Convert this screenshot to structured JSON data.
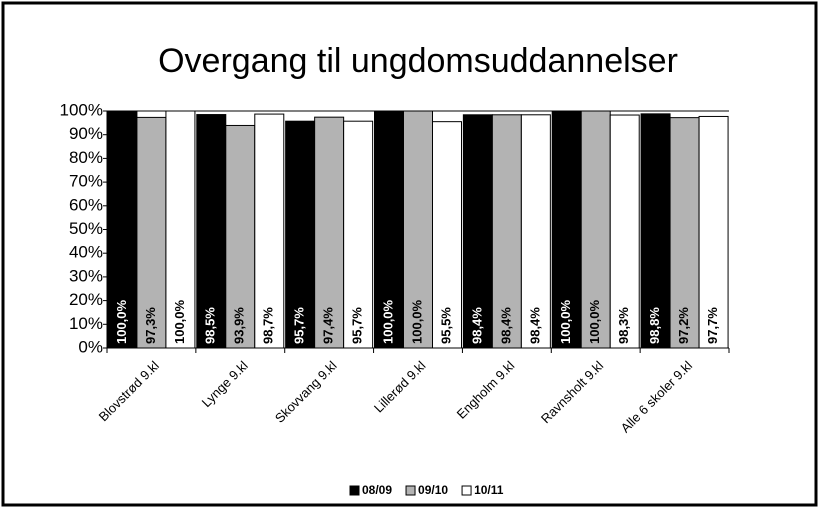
{
  "chart_data": {
    "type": "bar",
    "title": "Overgang til ungdomsuddannelser",
    "categories": [
      "Blovstrød 9.kl",
      "Lynge 9.kl",
      "Skovvang 9.kl",
      "Lillerød 9.kl",
      "Engholm 9.kl",
      "Ravnsholt 9.kl",
      "Alle 6 skoler 9.kl"
    ],
    "series": [
      {
        "name": "08/09",
        "color": "#000000",
        "values": [
          100,
          98.5,
          95.7,
          100,
          98.4,
          100,
          98.8
        ],
        "value_labels": [
          "100,0%",
          "98,5%",
          "95,7%",
          "100,0%",
          "98,4%",
          "100,0%",
          "98,8%"
        ]
      },
      {
        "name": "09/10",
        "color": "#b3b3b3",
        "values": [
          97.3,
          93.9,
          97.4,
          100,
          98.4,
          100,
          97.2
        ],
        "value_labels": [
          "97,3%",
          "93,9%",
          "97,4%",
          "100,0%",
          "98,4%",
          "100,0%",
          "97,2%"
        ]
      },
      {
        "name": "10/11",
        "color": "#ffffff",
        "values": [
          100,
          98.7,
          95.7,
          95.5,
          98.4,
          98.3,
          97.7
        ],
        "value_labels": [
          "100,0%",
          "98,7%",
          "95,7%",
          "95,5%",
          "98,4%",
          "98,3%",
          "97,7%"
        ]
      }
    ],
    "ylim": [
      0,
      100
    ],
    "yticks": [
      {
        "value": 0,
        "label": "0%"
      },
      {
        "value": 10,
        "label": "10%"
      },
      {
        "value": 20,
        "label": "20%"
      },
      {
        "value": 30,
        "label": "30%"
      },
      {
        "value": 40,
        "label": "40%"
      },
      {
        "value": 50,
        "label": "50%"
      },
      {
        "value": 60,
        "label": "60%"
      },
      {
        "value": 70,
        "label": "70%"
      },
      {
        "value": 80,
        "label": "80%"
      },
      {
        "value": 90,
        "label": "90%"
      },
      {
        "value": 100,
        "label": "100%"
      }
    ],
    "grid": false,
    "legend": "bottom"
  }
}
